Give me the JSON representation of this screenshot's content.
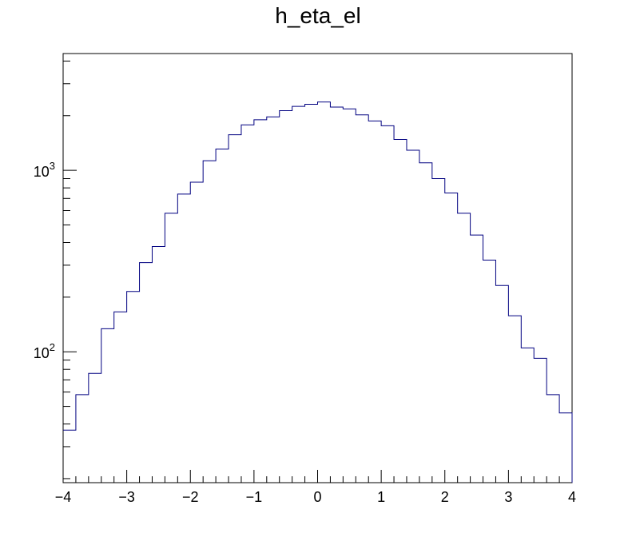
{
  "chart_data": {
    "type": "histogram",
    "title": "h_eta_el",
    "xlabel": "",
    "ylabel": "",
    "xlim": [
      -4,
      4
    ],
    "ylim": [
      19,
      4400
    ],
    "y_scale": "log",
    "grid": false,
    "line_color": "#000080",
    "bin_width": 0.2,
    "x_ticks": [
      "−4",
      "−3",
      "−2",
      "−1",
      "0",
      "1",
      "2",
      "3",
      "4"
    ],
    "y_ticks": [
      {
        "value": 100,
        "base": "10",
        "exp": "2"
      },
      {
        "value": 1000,
        "base": "10",
        "exp": "3"
      }
    ],
    "bins": [
      {
        "x": -4.0,
        "y": 37
      },
      {
        "x": -3.8,
        "y": 58
      },
      {
        "x": -3.6,
        "y": 76
      },
      {
        "x": -3.4,
        "y": 134
      },
      {
        "x": -3.2,
        "y": 166
      },
      {
        "x": -3.0,
        "y": 215
      },
      {
        "x": -2.8,
        "y": 310
      },
      {
        "x": -2.6,
        "y": 380
      },
      {
        "x": -2.4,
        "y": 580
      },
      {
        "x": -2.2,
        "y": 740
      },
      {
        "x": -2.0,
        "y": 860
      },
      {
        "x": -1.8,
        "y": 1130
      },
      {
        "x": -1.6,
        "y": 1310
      },
      {
        "x": -1.4,
        "y": 1570
      },
      {
        "x": -1.2,
        "y": 1780
      },
      {
        "x": -1.0,
        "y": 1900
      },
      {
        "x": -0.8,
        "y": 1970
      },
      {
        "x": -0.6,
        "y": 2130
      },
      {
        "x": -0.4,
        "y": 2250
      },
      {
        "x": -0.2,
        "y": 2310
      },
      {
        "x": 0.0,
        "y": 2380
      },
      {
        "x": 0.2,
        "y": 2230
      },
      {
        "x": 0.4,
        "y": 2180
      },
      {
        "x": 0.6,
        "y": 2020
      },
      {
        "x": 0.8,
        "y": 1870
      },
      {
        "x": 1.0,
        "y": 1760
      },
      {
        "x": 1.2,
        "y": 1480
      },
      {
        "x": 1.4,
        "y": 1290
      },
      {
        "x": 1.6,
        "y": 1100
      },
      {
        "x": 1.8,
        "y": 900
      },
      {
        "x": 2.0,
        "y": 750
      },
      {
        "x": 2.2,
        "y": 580
      },
      {
        "x": 2.4,
        "y": 440
      },
      {
        "x": 2.6,
        "y": 320
      },
      {
        "x": 2.8,
        "y": 232
      },
      {
        "x": 3.0,
        "y": 158
      },
      {
        "x": 3.2,
        "y": 105
      },
      {
        "x": 3.4,
        "y": 92
      },
      {
        "x": 3.6,
        "y": 58
      },
      {
        "x": 3.8,
        "y": 46
      }
    ]
  }
}
